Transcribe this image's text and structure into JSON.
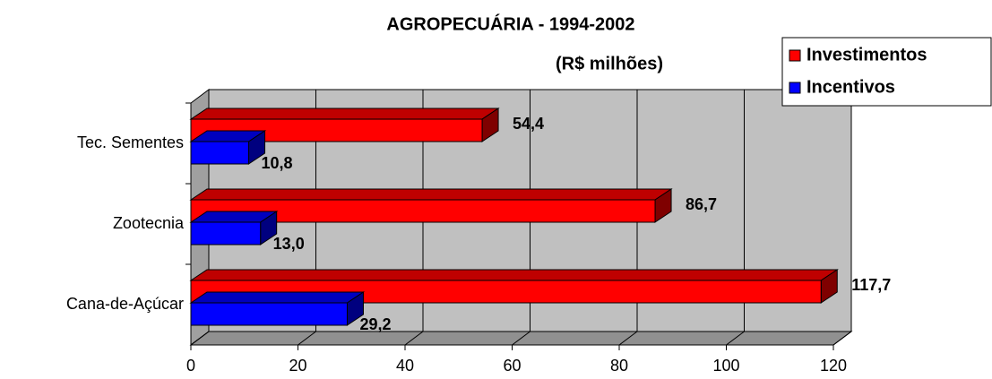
{
  "chart_data": {
    "type": "bar3d",
    "orientation": "horizontal",
    "title": "AGROPECUÁRIA - 1994-2002",
    "subtitle": "(R$ milhões)",
    "categories": [
      "Tec. Sementes",
      "Zootecnia",
      "Cana-de-Açúcar"
    ],
    "series": [
      {
        "name": "Investimentos",
        "color": "#ff0000",
        "values": [
          54.4,
          86.7,
          117.7
        ],
        "value_labels": [
          "54,4",
          "86,7",
          "117,7"
        ]
      },
      {
        "name": "Incentivos",
        "color": "#0000ff",
        "values": [
          10.8,
          13.0,
          29.2
        ],
        "value_labels": [
          "10,8",
          "13,0",
          "29,2"
        ]
      }
    ],
    "xlim": [
      0,
      120
    ],
    "xticks": [
      0,
      20,
      40,
      60,
      80,
      100,
      120
    ],
    "grid": true,
    "legend": "top-right"
  }
}
